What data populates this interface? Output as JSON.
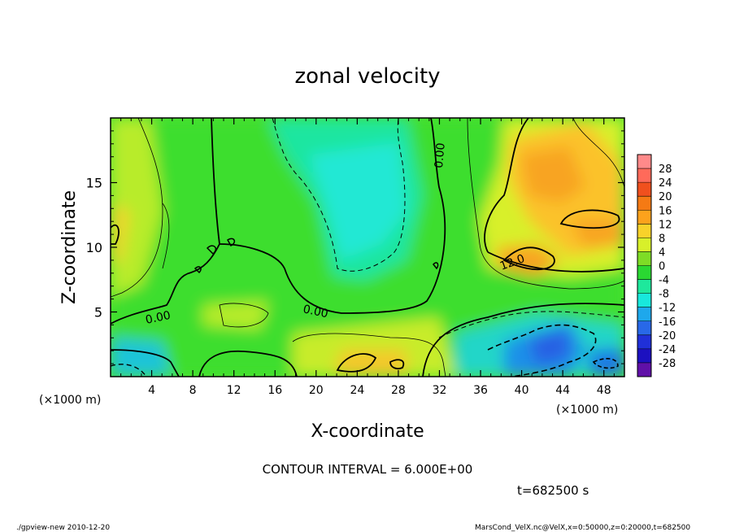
{
  "chart_data": {
    "type": "heatmap",
    "title": "zonal velocity",
    "xlabel": "X-coordinate",
    "ylabel": "Z-coordinate",
    "x_unit": "(×1000 m)",
    "x_unit_right": "(×1000 m)",
    "xlim": [
      0,
      50
    ],
    "ylim": [
      0,
      20
    ],
    "x_ticks": [
      4,
      8,
      12,
      16,
      20,
      24,
      28,
      32,
      36,
      40,
      44,
      48
    ],
    "y_ticks": [
      5,
      10,
      15
    ],
    "colorbar": {
      "labels": [
        "28",
        "24",
        "20",
        "16",
        "12",
        "8",
        "4",
        "0",
        "-4",
        "-8",
        "-12",
        "-16",
        "-20",
        "-24",
        "-28"
      ],
      "colors": [
        "#ff8a8a",
        "#ff6a5a",
        "#f0501e",
        "#f57a14",
        "#fca21c",
        "#f8d22a",
        "#d8f02a",
        "#7edc26",
        "#2ad832",
        "#1ee89c",
        "#18e8dc",
        "#1ea8ec",
        "#2868e8",
        "#2030d8",
        "#1c10c0",
        "#6010a8"
      ]
    },
    "contour_labels": [
      "0.00",
      "0.00",
      "0.00",
      "12.0"
    ],
    "contour_interval_text": "CONTOUR INTERVAL = 6.000E+00",
    "field_extremes": {
      "positive_max_approx": 18,
      "positive_max_location": [
        42,
        15
      ],
      "negative_min_approx": -16,
      "negative_min_location": [
        42,
        2
      ],
      "main_negative_region_center": [
        24,
        12
      ],
      "main_negative_region_value": -9
    }
  },
  "annotations": {
    "time": "t=682500 s",
    "footer_left": "./gpview-new   2010-12-20",
    "footer_right": "MarsCond_VelX.nc@VelX,x=0:50000,z=0:20000,t=682500"
  }
}
